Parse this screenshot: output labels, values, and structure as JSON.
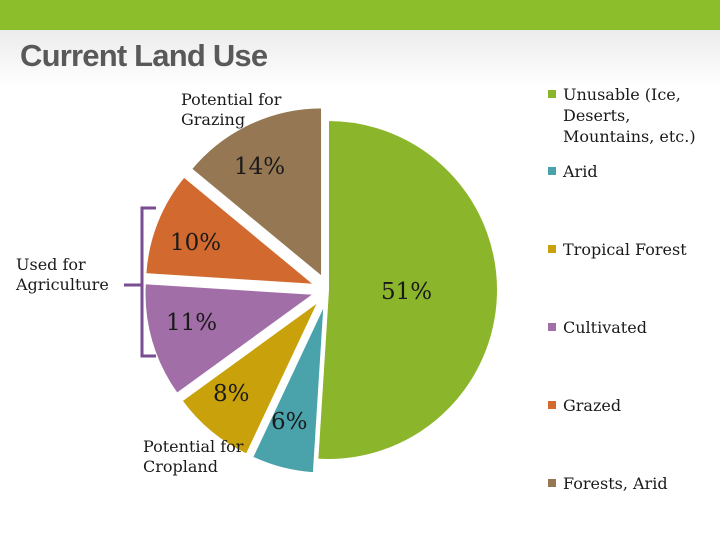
{
  "title": "Current Land Use",
  "chart_data": {
    "type": "pie",
    "slices": [
      {
        "label": "Unusable (Ice, Deserts, Mountains, etc.)",
        "value": 51,
        "value_label": "51%",
        "color": "#8bb52a",
        "exploded": false
      },
      {
        "label": "Arid",
        "value": 6,
        "value_label": "6%",
        "color": "#4aa2ab",
        "exploded": true
      },
      {
        "label": "Tropical Forest",
        "value": 8,
        "value_label": "8%",
        "color": "#c9a20b",
        "exploded": true
      },
      {
        "label": "Cultivated",
        "value": 11,
        "value_label": "11%",
        "color": "#a26ea8",
        "exploded": true
      },
      {
        "label": "Grazed",
        "value": 10,
        "value_label": "10%",
        "color": "#d2692f",
        "exploded": true
      },
      {
        "label": "Forests, Arid",
        "value": 14,
        "value_label": "14%",
        "color": "#957853",
        "exploded": true
      }
    ],
    "legend_position": "right"
  },
  "annotations": {
    "grazing": "Potential for Grazing",
    "agriculture": "Used for Agriculture",
    "cropland": "Potential for Cropland"
  }
}
